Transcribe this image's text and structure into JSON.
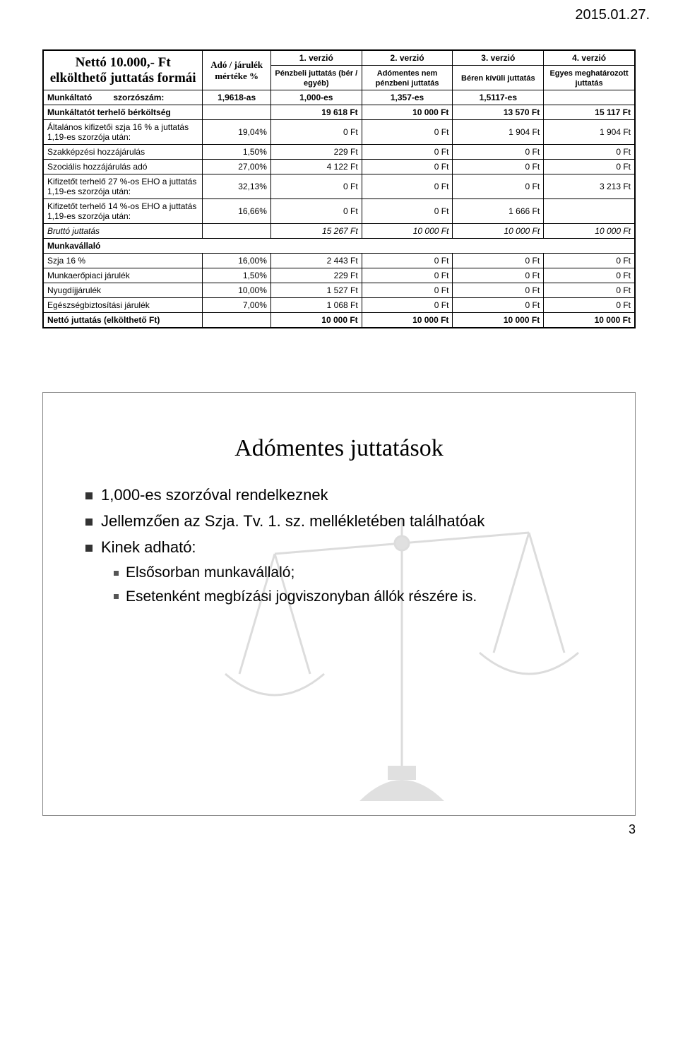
{
  "date_stamp": "2015.01.27.",
  "page_number": "3",
  "table": {
    "title": "Nettó 10.000,- Ft elkölthető juttatás formái",
    "rate_header": "Adó / járulék mértéke %",
    "version_headers": [
      {
        "num": "1. verzió",
        "desc": "Pénzbeli juttatás (bér / egyéb)"
      },
      {
        "num": "2. verzió",
        "desc": "Adómentes nem pénzbeni juttatás"
      },
      {
        "num": "3. verzió",
        "desc": "Béren kívüli juttatás"
      },
      {
        "num": "4. verzió",
        "desc": "Egyes meghatározott juttatás"
      }
    ],
    "employer_label": "Munkáltató",
    "multiplier_label": "szorzószám:",
    "multipliers": [
      "1,9618-as",
      "1,000-es",
      "1,357-es",
      "1,5117-es"
    ],
    "rows": [
      {
        "label": "Munkáltatót terhelő bérköltség",
        "rate": "",
        "v": [
          "19 618 Ft",
          "10 000 Ft",
          "13 570 Ft",
          "15 117 Ft"
        ],
        "bold": true
      },
      {
        "label": "Általános kifizetői szja 16 % a juttatás 1,19-es szorzója után:",
        "rate": "19,04%",
        "v": [
          "0 Ft",
          "0 Ft",
          "1 904 Ft",
          "1 904 Ft"
        ]
      },
      {
        "label": "Szakképzési hozzájárulás",
        "rate": "1,50%",
        "v": [
          "229 Ft",
          "0 Ft",
          "0 Ft",
          "0 Ft"
        ]
      },
      {
        "label": "Szociális hozzájárulás adó",
        "rate": "27,00%",
        "v": [
          "4 122 Ft",
          "0 Ft",
          "0 Ft",
          "0 Ft"
        ]
      },
      {
        "label": "Kifizetőt terhelő 27 %-os EHO a juttatás 1,19-es szorzója után:",
        "rate": "32,13%",
        "v": [
          "0 Ft",
          "0 Ft",
          "0 Ft",
          "3 213 Ft"
        ]
      },
      {
        "label": "Kifizetőt terhelő 14 %-os EHO a juttatás 1,19-es szorzója után:",
        "rate": "16,66%",
        "v": [
          "0 Ft",
          "0 Ft",
          "1 666 Ft",
          ""
        ]
      },
      {
        "label": "Bruttó juttatás",
        "rate": "",
        "v": [
          "15 267 Ft",
          "10 000 Ft",
          "10 000 Ft",
          "10 000 Ft"
        ],
        "italic": true
      }
    ],
    "employee_label": "Munkavállaló",
    "rows2": [
      {
        "label": "Szja 16 %",
        "rate": "16,00%",
        "v": [
          "2 443 Ft",
          "0 Ft",
          "0 Ft",
          "0 Ft"
        ]
      },
      {
        "label": "Munkaerőpiaci járulék",
        "rate": "1,50%",
        "v": [
          "229 Ft",
          "0 Ft",
          "0 Ft",
          "0 Ft"
        ]
      },
      {
        "label": "Nyugdíjjárulék",
        "rate": "10,00%",
        "v": [
          "1 527 Ft",
          "0 Ft",
          "0 Ft",
          "0 Ft"
        ]
      },
      {
        "label": "Egészségbiztosítási járulék",
        "rate": "7,00%",
        "v": [
          "1 068 Ft",
          "0 Ft",
          "0 Ft",
          "0 Ft"
        ]
      },
      {
        "label": "Nettó juttatás (elkölthető Ft)",
        "rate": "",
        "v": [
          "10 000 Ft",
          "10 000 Ft",
          "10 000 Ft",
          "10 000 Ft"
        ],
        "bold": true
      }
    ]
  },
  "info": {
    "title": "Adómentes juttatások",
    "bullets_lvl1": [
      "1,000-es szorzóval rendelkeznek",
      "Jellemzően az Szja. Tv. 1. sz. mellékletében találhatóak",
      "Kinek adható:"
    ],
    "bullets_lvl2": [
      "Elsősorban munkavállaló;",
      "Esetenként megbízási jogviszonyban állók részére is."
    ]
  }
}
